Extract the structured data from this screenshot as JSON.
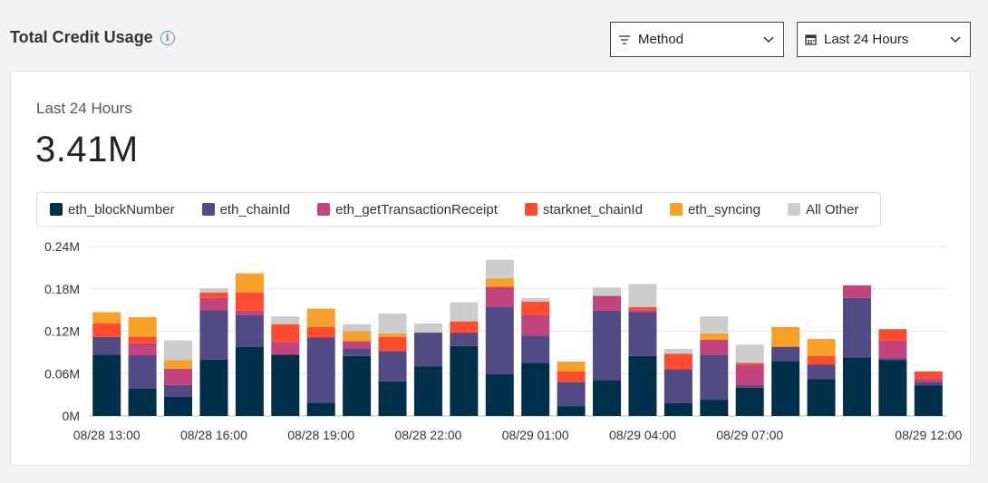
{
  "header": {
    "title": "Total Credit Usage",
    "info_icon": "info-icon",
    "method_dropdown": {
      "label": "Method",
      "icon": "filter-icon"
    },
    "range_dropdown": {
      "label": "Last 24 Hours",
      "icon": "calendar-icon"
    }
  },
  "summary": {
    "range_label": "Last 24 Hours",
    "total": "3.41M"
  },
  "chart_data": {
    "type": "bar",
    "stacked": true,
    "grid": true,
    "legend_position": "top",
    "ylim": [
      0,
      240000
    ],
    "yticks": [
      "0M",
      "0.06M",
      "0.12M",
      "0.18M",
      "0.24M"
    ],
    "yticks_values": [
      0,
      60000,
      120000,
      180000,
      240000
    ],
    "xtick_labels": [
      "08/28 13:00",
      "08/28 16:00",
      "08/28 19:00",
      "08/28 22:00",
      "08/29 01:00",
      "08/29 04:00",
      "08/29 07:00",
      "08/29 12:00"
    ],
    "xtick_bar_index": [
      0,
      3,
      6,
      9,
      12,
      15,
      18,
      23
    ],
    "series": [
      {
        "name": "eth_blockNumber",
        "color": "#003049",
        "values": [
          87000,
          39000,
          27000,
          80000,
          98000,
          87000,
          19000,
          85000,
          49000,
          70000,
          99000,
          59000,
          75000,
          14000,
          51000,
          85000,
          18000,
          23000,
          40000,
          78000,
          52000,
          83000,
          79000,
          43000
        ]
      },
      {
        "name": "eth_chainId",
        "color": "#514a84",
        "values": [
          25000,
          47000,
          17000,
          70000,
          45000,
          0,
          92000,
          11000,
          43000,
          48000,
          19000,
          96000,
          39000,
          34000,
          98000,
          62000,
          48000,
          64000,
          3000,
          20000,
          21000,
          84000,
          3000,
          5000
        ]
      },
      {
        "name": "eth_getTransactionReceipt",
        "color": "#c1447e",
        "values": [
          0,
          17000,
          23000,
          17000,
          6000,
          18000,
          0,
          10000,
          0,
          0,
          0,
          28000,
          29000,
          0,
          21000,
          3000,
          0,
          21000,
          29000,
          0,
          0,
          18000,
          25000,
          5000
        ]
      },
      {
        "name": "starknet_chainId",
        "color": "#ff4c30",
        "values": [
          19000,
          9000,
          0,
          8000,
          26000,
          25000,
          15000,
          0,
          20000,
          0,
          16000,
          0,
          19000,
          15000,
          0,
          4000,
          22000,
          0,
          3000,
          0,
          12000,
          0,
          16000,
          10000
        ]
      },
      {
        "name": "eth_syncing",
        "color": "#f7a128",
        "values": [
          16000,
          28000,
          12000,
          0,
          27000,
          0,
          26000,
          14000,
          5000,
          0,
          0,
          12000,
          0,
          14000,
          0,
          0,
          0,
          9000,
          0,
          28000,
          24000,
          0,
          0,
          0
        ]
      },
      {
        "name": "All Other",
        "color": "#cccccc",
        "values": [
          0,
          0,
          28000,
          6000,
          0,
          11000,
          0,
          10000,
          28000,
          13000,
          27000,
          26000,
          5000,
          0,
          12000,
          33000,
          7000,
          24000,
          26000,
          0,
          0,
          0,
          0,
          0
        ]
      }
    ]
  }
}
